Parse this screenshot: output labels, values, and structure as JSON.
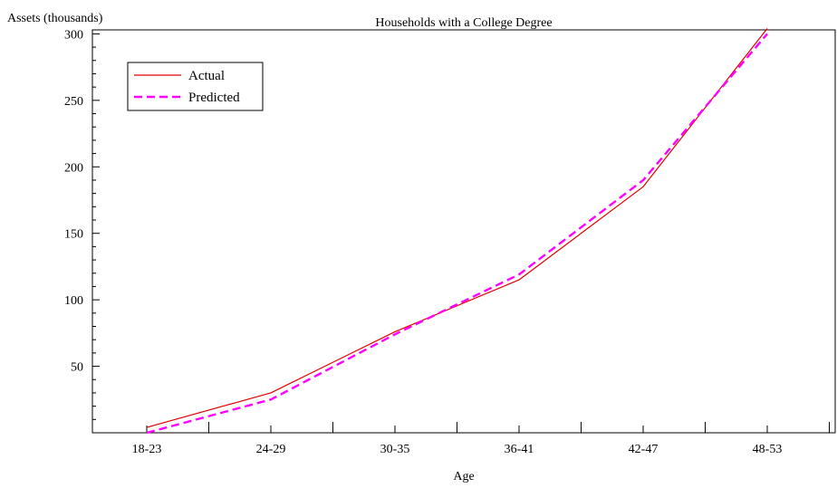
{
  "chart_data": {
    "type": "line",
    "title": "Households with a College Degree",
    "xlabel": "Age",
    "ylabel": "Assets (thousands)",
    "categories": [
      "18-23",
      "24-29",
      "30-35",
      "36-41",
      "42-47",
      "48-53"
    ],
    "yticks": [
      50,
      100,
      150,
      200,
      250,
      300
    ],
    "ylim": [
      0,
      303
    ],
    "legend_position": "top-left",
    "grid": false,
    "series": [
      {
        "name": "Actual",
        "color": "#e00000",
        "dash": "solid",
        "values": [
          4,
          30,
          76,
          115,
          185,
          304
        ]
      },
      {
        "name": "Predicted",
        "color": "#ff00ff",
        "dash": "dashed",
        "values": [
          0,
          25,
          74,
          119,
          190,
          300
        ]
      }
    ]
  }
}
